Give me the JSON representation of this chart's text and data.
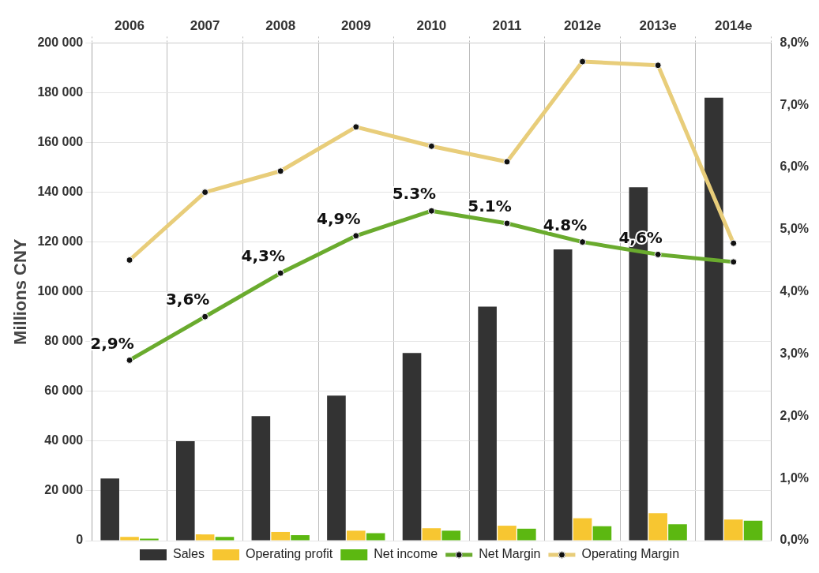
{
  "chart_data": {
    "type": "bar",
    "ylabel": "Millions CNY",
    "categories": [
      "2006",
      "2007",
      "2008",
      "2009",
      "2010",
      "2011",
      "2012e",
      "2013e",
      "2014e"
    ],
    "series": [
      {
        "name": "Sales",
        "color": "#333333",
        "values": [
          25000,
          40000,
          50000,
          58300,
          75400,
          94000,
          117000,
          142000,
          178000
        ]
      },
      {
        "name": "Operating profit",
        "color": "#f7c631",
        "values": [
          1500,
          2500,
          3500,
          4000,
          5000,
          6000,
          9000,
          11000,
          8500
        ]
      },
      {
        "name": "Net income",
        "color": "#5cb811",
        "values": [
          800,
          1500,
          2200,
          3000,
          4000,
          4800,
          5800,
          6600,
          8000
        ]
      },
      {
        "name": "Net Margin",
        "type": "line",
        "axis": "y2",
        "color": "#6aab2e",
        "values": [
          2.9,
          3.6,
          4.3,
          4.9,
          5.3,
          5.1,
          4.8,
          4.6,
          4.48
        ],
        "value_labels": [
          "2,9%",
          "3,6%",
          "4,3%",
          "4,9%",
          "5.3%",
          "5.1%",
          "4.8%",
          "4,6%",
          null
        ]
      },
      {
        "name": "Operating Margin",
        "type": "line",
        "axis": "y2",
        "color": "#e8cd7a",
        "values": [
          4.51,
          5.6,
          5.94,
          6.65,
          6.34,
          6.09,
          7.7,
          7.64,
          4.78
        ]
      }
    ],
    "ylim": [
      0,
      200000
    ],
    "yticks": [
      {
        "value": 0,
        "label": "0"
      },
      {
        "value": 20000,
        "label": "20 000"
      },
      {
        "value": 40000,
        "label": "40 000"
      },
      {
        "value": 60000,
        "label": "60 000"
      },
      {
        "value": 80000,
        "label": "80 000"
      },
      {
        "value": 100000,
        "label": "100 000"
      },
      {
        "value": 120000,
        "label": "120 000"
      },
      {
        "value": 140000,
        "label": "140 000"
      },
      {
        "value": 160000,
        "label": "160 000"
      },
      {
        "value": 180000,
        "label": "180 000"
      },
      {
        "value": 200000,
        "label": "200 000"
      }
    ],
    "y2lim": [
      0,
      8
    ],
    "y2ticks": [
      {
        "value": 0,
        "label": "0,0%"
      },
      {
        "value": 1,
        "label": "1,0%"
      },
      {
        "value": 2,
        "label": "2,0%"
      },
      {
        "value": 3,
        "label": "3,0%"
      },
      {
        "value": 4,
        "label": "4,0%"
      },
      {
        "value": 5,
        "label": "5,0%"
      },
      {
        "value": 6,
        "label": "6,0%"
      },
      {
        "value": 7,
        "label": "7,0%"
      },
      {
        "value": 8,
        "label": "8,0%"
      }
    ],
    "grid": true,
    "legend": "bottom",
    "marker": "circle",
    "line_style": "solid"
  }
}
